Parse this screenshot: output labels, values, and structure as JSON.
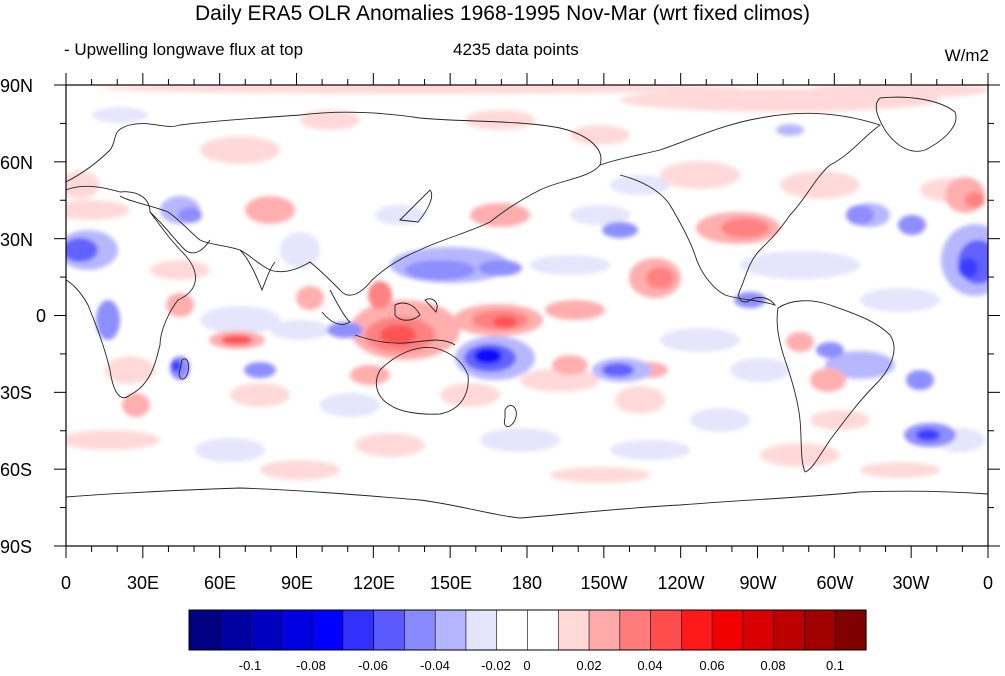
{
  "header": {
    "title": "Daily ERA5 OLR Anomalies 1968-1995 Nov-Mar (wrt fixed climos)",
    "left_subtitle": "- Upwelling longwave flux at top",
    "center_subtitle": "4235 data points",
    "units": "W/m2"
  },
  "axes": {
    "lat_labels": [
      "90N",
      "60N",
      "30N",
      "0",
      "30S",
      "60S",
      "90S"
    ],
    "lon_labels": [
      "0",
      "30E",
      "60E",
      "90E",
      "120E",
      "150E",
      "180",
      "150W",
      "120W",
      "90W",
      "60W",
      "30W",
      "0"
    ]
  },
  "colorbar": {
    "colors": [
      "#000080",
      "#0000a0",
      "#0000c0",
      "#0000e0",
      "#0000ff",
      "#3030ff",
      "#5a5aff",
      "#8888ff",
      "#b4b4ff",
      "#e4e4fc",
      "#ffffff",
      "#ffffff",
      "#ffd8d8",
      "#ffaaaa",
      "#ff7c7c",
      "#ff4c4c",
      "#ff1a1a",
      "#f20000",
      "#d80000",
      "#bc0000",
      "#a00000",
      "#800000"
    ],
    "labels": [
      "-0.1",
      "-0.08",
      "-0.06",
      "-0.04",
      "-0.02",
      "0",
      "0.02",
      "0.04",
      "0.06",
      "0.08",
      "0.1"
    ]
  }
}
